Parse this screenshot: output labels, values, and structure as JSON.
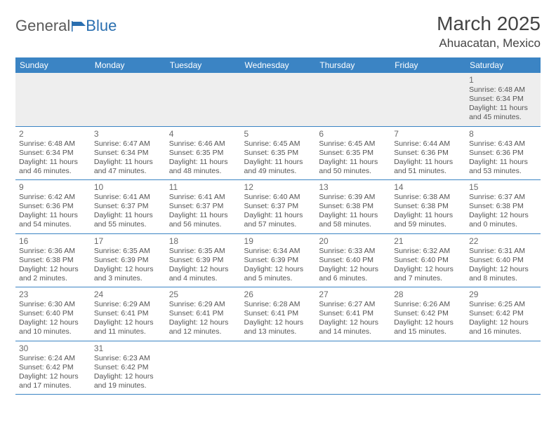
{
  "logo": {
    "word1": "General",
    "word2": "Blue"
  },
  "title": "March 2025",
  "location": "Ahuacatan, Mexico",
  "colors": {
    "header_bg": "#3b84c4",
    "header_text": "#ffffff",
    "cell_border": "#3b84c4",
    "firstweek_bg": "#eeeeee",
    "daynum": "#6a6a6a",
    "body_text": "#555555",
    "logo_gray": "#5a5a5a",
    "logo_blue": "#2a6fb0"
  },
  "weekdays": [
    "Sunday",
    "Monday",
    "Tuesday",
    "Wednesday",
    "Thursday",
    "Friday",
    "Saturday"
  ],
  "weeks": [
    [
      null,
      null,
      null,
      null,
      null,
      null,
      {
        "n": "1",
        "sr": "Sunrise: 6:48 AM",
        "ss": "Sunset: 6:34 PM",
        "d1": "Daylight: 11 hours",
        "d2": "and 45 minutes."
      }
    ],
    [
      {
        "n": "2",
        "sr": "Sunrise: 6:48 AM",
        "ss": "Sunset: 6:34 PM",
        "d1": "Daylight: 11 hours",
        "d2": "and 46 minutes."
      },
      {
        "n": "3",
        "sr": "Sunrise: 6:47 AM",
        "ss": "Sunset: 6:34 PM",
        "d1": "Daylight: 11 hours",
        "d2": "and 47 minutes."
      },
      {
        "n": "4",
        "sr": "Sunrise: 6:46 AM",
        "ss": "Sunset: 6:35 PM",
        "d1": "Daylight: 11 hours",
        "d2": "and 48 minutes."
      },
      {
        "n": "5",
        "sr": "Sunrise: 6:45 AM",
        "ss": "Sunset: 6:35 PM",
        "d1": "Daylight: 11 hours",
        "d2": "and 49 minutes."
      },
      {
        "n": "6",
        "sr": "Sunrise: 6:45 AM",
        "ss": "Sunset: 6:35 PM",
        "d1": "Daylight: 11 hours",
        "d2": "and 50 minutes."
      },
      {
        "n": "7",
        "sr": "Sunrise: 6:44 AM",
        "ss": "Sunset: 6:36 PM",
        "d1": "Daylight: 11 hours",
        "d2": "and 51 minutes."
      },
      {
        "n": "8",
        "sr": "Sunrise: 6:43 AM",
        "ss": "Sunset: 6:36 PM",
        "d1": "Daylight: 11 hours",
        "d2": "and 53 minutes."
      }
    ],
    [
      {
        "n": "9",
        "sr": "Sunrise: 6:42 AM",
        "ss": "Sunset: 6:36 PM",
        "d1": "Daylight: 11 hours",
        "d2": "and 54 minutes."
      },
      {
        "n": "10",
        "sr": "Sunrise: 6:41 AM",
        "ss": "Sunset: 6:37 PM",
        "d1": "Daylight: 11 hours",
        "d2": "and 55 minutes."
      },
      {
        "n": "11",
        "sr": "Sunrise: 6:41 AM",
        "ss": "Sunset: 6:37 PM",
        "d1": "Daylight: 11 hours",
        "d2": "and 56 minutes."
      },
      {
        "n": "12",
        "sr": "Sunrise: 6:40 AM",
        "ss": "Sunset: 6:37 PM",
        "d1": "Daylight: 11 hours",
        "d2": "and 57 minutes."
      },
      {
        "n": "13",
        "sr": "Sunrise: 6:39 AM",
        "ss": "Sunset: 6:38 PM",
        "d1": "Daylight: 11 hours",
        "d2": "and 58 minutes."
      },
      {
        "n": "14",
        "sr": "Sunrise: 6:38 AM",
        "ss": "Sunset: 6:38 PM",
        "d1": "Daylight: 11 hours",
        "d2": "and 59 minutes."
      },
      {
        "n": "15",
        "sr": "Sunrise: 6:37 AM",
        "ss": "Sunset: 6:38 PM",
        "d1": "Daylight: 12 hours",
        "d2": "and 0 minutes."
      }
    ],
    [
      {
        "n": "16",
        "sr": "Sunrise: 6:36 AM",
        "ss": "Sunset: 6:38 PM",
        "d1": "Daylight: 12 hours",
        "d2": "and 2 minutes."
      },
      {
        "n": "17",
        "sr": "Sunrise: 6:35 AM",
        "ss": "Sunset: 6:39 PM",
        "d1": "Daylight: 12 hours",
        "d2": "and 3 minutes."
      },
      {
        "n": "18",
        "sr": "Sunrise: 6:35 AM",
        "ss": "Sunset: 6:39 PM",
        "d1": "Daylight: 12 hours",
        "d2": "and 4 minutes."
      },
      {
        "n": "19",
        "sr": "Sunrise: 6:34 AM",
        "ss": "Sunset: 6:39 PM",
        "d1": "Daylight: 12 hours",
        "d2": "and 5 minutes."
      },
      {
        "n": "20",
        "sr": "Sunrise: 6:33 AM",
        "ss": "Sunset: 6:40 PM",
        "d1": "Daylight: 12 hours",
        "d2": "and 6 minutes."
      },
      {
        "n": "21",
        "sr": "Sunrise: 6:32 AM",
        "ss": "Sunset: 6:40 PM",
        "d1": "Daylight: 12 hours",
        "d2": "and 7 minutes."
      },
      {
        "n": "22",
        "sr": "Sunrise: 6:31 AM",
        "ss": "Sunset: 6:40 PM",
        "d1": "Daylight: 12 hours",
        "d2": "and 8 minutes."
      }
    ],
    [
      {
        "n": "23",
        "sr": "Sunrise: 6:30 AM",
        "ss": "Sunset: 6:40 PM",
        "d1": "Daylight: 12 hours",
        "d2": "and 10 minutes."
      },
      {
        "n": "24",
        "sr": "Sunrise: 6:29 AM",
        "ss": "Sunset: 6:41 PM",
        "d1": "Daylight: 12 hours",
        "d2": "and 11 minutes."
      },
      {
        "n": "25",
        "sr": "Sunrise: 6:29 AM",
        "ss": "Sunset: 6:41 PM",
        "d1": "Daylight: 12 hours",
        "d2": "and 12 minutes."
      },
      {
        "n": "26",
        "sr": "Sunrise: 6:28 AM",
        "ss": "Sunset: 6:41 PM",
        "d1": "Daylight: 12 hours",
        "d2": "and 13 minutes."
      },
      {
        "n": "27",
        "sr": "Sunrise: 6:27 AM",
        "ss": "Sunset: 6:41 PM",
        "d1": "Daylight: 12 hours",
        "d2": "and 14 minutes."
      },
      {
        "n": "28",
        "sr": "Sunrise: 6:26 AM",
        "ss": "Sunset: 6:42 PM",
        "d1": "Daylight: 12 hours",
        "d2": "and 15 minutes."
      },
      {
        "n": "29",
        "sr": "Sunrise: 6:25 AM",
        "ss": "Sunset: 6:42 PM",
        "d1": "Daylight: 12 hours",
        "d2": "and 16 minutes."
      }
    ],
    [
      {
        "n": "30",
        "sr": "Sunrise: 6:24 AM",
        "ss": "Sunset: 6:42 PM",
        "d1": "Daylight: 12 hours",
        "d2": "and 17 minutes."
      },
      {
        "n": "31",
        "sr": "Sunrise: 6:23 AM",
        "ss": "Sunset: 6:42 PM",
        "d1": "Daylight: 12 hours",
        "d2": "and 19 minutes."
      },
      null,
      null,
      null,
      null,
      null
    ]
  ]
}
